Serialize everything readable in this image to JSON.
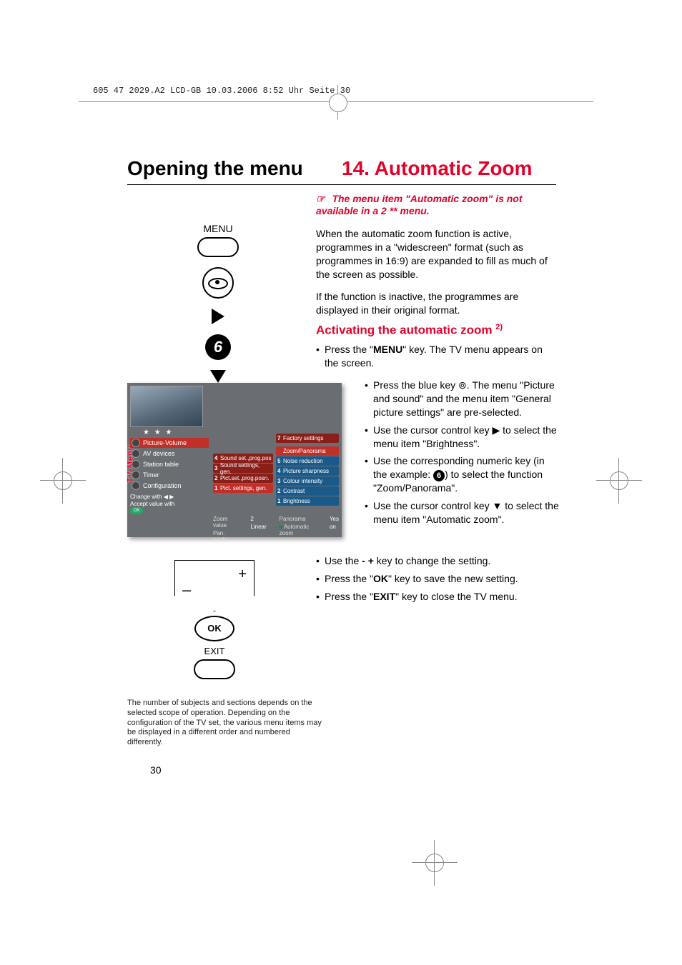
{
  "header_line": "605 47 2029.A2 LCD-GB  10.03.2006  8:52 Uhr  Seite 30",
  "titles": {
    "left": "Opening the menu",
    "right": "14. Automatic Zoom"
  },
  "note": {
    "icon": "☞",
    "text": "The menu item \"Automatic zoom\" is not available in a 2 ** menu."
  },
  "paragraphs": {
    "p1": "When the automatic zoom function is active, programmes in a \"widescreen\" format (such as programmes in 16:9) are expanded to fill as much of the screen as possible.",
    "p2": "If the function is inactive, the programmes are displayed in their original format."
  },
  "subhead": {
    "text": "Activating the automatic zoom",
    "note_marker": "2)"
  },
  "bullets_top": [
    {
      "pre": "Press the \"",
      "bold": "MENU",
      "post": "\" key. The TV menu appears on the screen."
    }
  ],
  "bullets_right": [
    {
      "text": "Press the blue key ⊚. The menu \"Picture and sound\" and the menu item \"General picture settings\" are pre-selected."
    },
    {
      "text": "Use the cursor control key ▶ to select the menu item \"Brightness\"."
    },
    {
      "text_before": "Use the corresponding numeric key (in the example: ",
      "circled": "6",
      "text_after": ") to select the function \"Zoom/Panorama\"."
    },
    {
      "text": "Use the cursor control key ▼ to select the menu item \"Automatic zoom\"."
    }
  ],
  "bullets_bottom": [
    {
      "pre": "Use the ",
      "bold": "- +",
      "post": " key to change the setting."
    },
    {
      "pre": "Press the \"",
      "bold": "OK",
      "post": "\" key to save the new setting."
    },
    {
      "pre": "Press the \"",
      "bold": "EXIT",
      "post": "\" key to close the TV menu."
    }
  ],
  "remote": {
    "menu_label": "MENU",
    "numeric_key": "6",
    "ok_label": "OK",
    "exit_label": "EXIT"
  },
  "tvpanel": {
    "label": "TV-Menu",
    "stars": "★ ★ ★",
    "sidebar_items": [
      {
        "label": "Picture-Volume",
        "selected": true
      },
      {
        "label": "AV devices",
        "selected": false
      },
      {
        "label": "Station table",
        "selected": false
      },
      {
        "label": "Timer",
        "selected": false
      },
      {
        "label": "Configuration",
        "selected": false
      }
    ],
    "change_line1": "Change with ◀ ▶",
    "change_line2": "Accept value with",
    "ok": "OK",
    "col2": [
      {
        "k": "4",
        "label": "Sound set.,prog.pos"
      },
      {
        "k": "3",
        "label": "Sound settings, gen."
      },
      {
        "k": "2",
        "label": "Pict.set.,prog.posn."
      },
      {
        "k": "1",
        "label": "Pict. settings, gen."
      }
    ],
    "col3": [
      {
        "k": "7",
        "label": "Factory settings",
        "style": "darkred"
      },
      {
        "k": "",
        "label": "Zoom/Panorama",
        "style": "red"
      },
      {
        "k": "5",
        "label": "Noise reduction",
        "style": "blue"
      },
      {
        "k": "4",
        "label": "Picture sharpness",
        "style": "blue"
      },
      {
        "k": "3",
        "label": "Colour intensity",
        "style": "blue"
      },
      {
        "k": "2",
        "label": "Contrast",
        "style": "blue"
      },
      {
        "k": "1",
        "label": "Brightness",
        "style": "blue"
      }
    ],
    "footer": {
      "zoom_value_label": "Zoom value",
      "zoom_value": "2",
      "pan_mode_label": "Pan. mode",
      "pan_mode": "Linear",
      "panorama_label": "Panorama",
      "panorama": "Yes",
      "auto_zoom_label": "Automatic zoom",
      "auto_zoom": "on"
    }
  },
  "footnote": "The number of subjects and sections depends on the selected scope of operation. Depending on the configuration of the TV set, the various menu items may be displayed in a different order and numbered differently.",
  "page_number": "30",
  "colors": {
    "accent_red": "#e4002b",
    "panel_bg": "#6a6e72",
    "panel_blue": "#195a8a",
    "panel_red": "#c03028"
  }
}
